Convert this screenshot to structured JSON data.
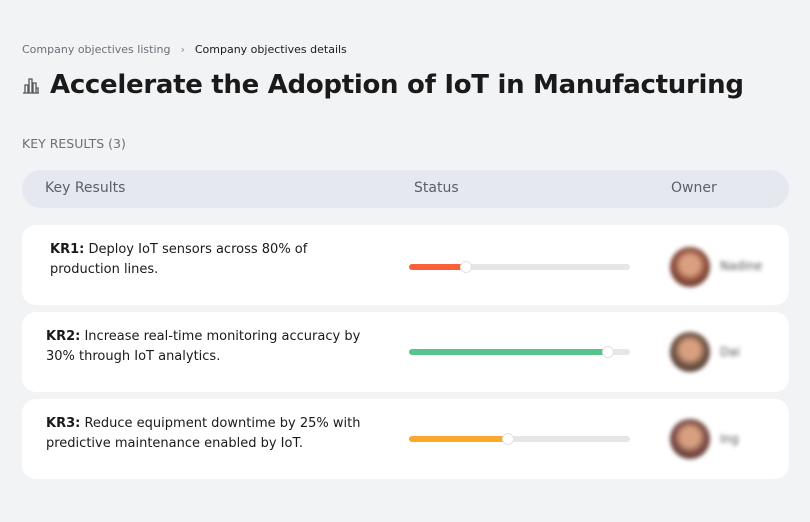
{
  "breadcrumb": {
    "parent": "Company objectives listing",
    "separator": "›",
    "current": "Company objectives details"
  },
  "page": {
    "icon": "building-chart-icon",
    "title": "Accelerate the Adoption of IoT in Manufacturing"
  },
  "key_results_count_label": "KEY RESULTS (3)",
  "table": {
    "headers": {
      "key_results": "Key Results",
      "status": "Status",
      "owner": "Owner"
    },
    "rows": [
      {
        "id": "KR1:",
        "text": "Deploy IoT sensors across 80% of production lines.",
        "progress_percent": 26,
        "color": "#f9603a",
        "owner": "Nadine",
        "avatar_color": "#8a4a3a"
      },
      {
        "id": "KR2:",
        "text": "Increase real-time monitoring accuracy by 30% through IoT analytics.",
        "progress_percent": 90,
        "color": "#56c48c",
        "owner": "Dai",
        "avatar_color": "#6b5040"
      },
      {
        "id": "KR3:",
        "text": "Reduce equipment downtime by 25% with predictive maintenance enabled by IoT.",
        "progress_percent": 45,
        "color": "#fca72e",
        "owner": "Ing",
        "avatar_color": "#7a4a44"
      }
    ]
  }
}
